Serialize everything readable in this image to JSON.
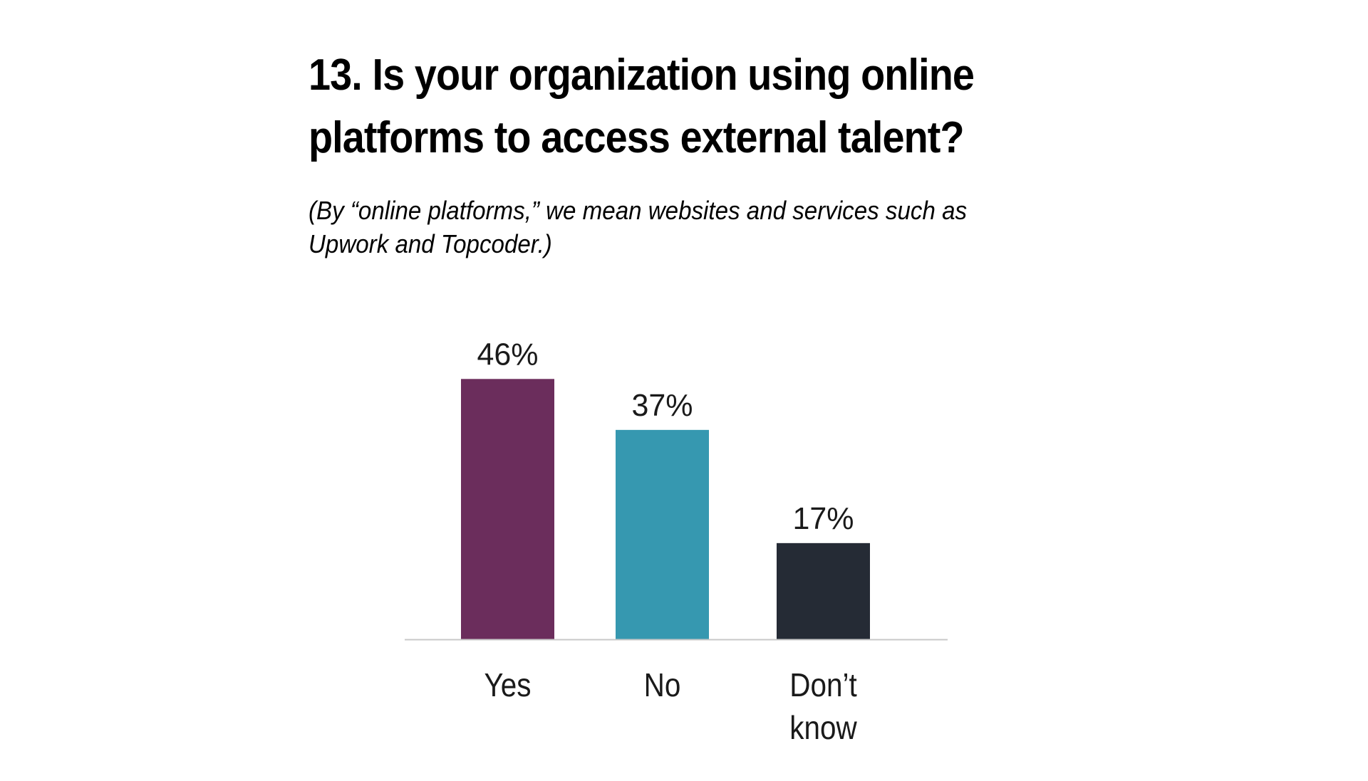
{
  "chart_data": {
    "type": "bar",
    "title_lines": [
      "13. Is your organization using online",
      "platforms to access external talent?"
    ],
    "subtitle_lines": [
      "(By “online platforms,” we mean websites and services such as",
      "Upwork and Topcoder.)"
    ],
    "categories": [
      "Yes",
      "No",
      "Don’t know"
    ],
    "category_label_lines": [
      [
        "Yes"
      ],
      [
        "No"
      ],
      [
        "Don’t",
        "know"
      ]
    ],
    "values": [
      46,
      37,
      17
    ],
    "value_labels": [
      "46%",
      "37%",
      "17%"
    ],
    "bar_colors": [
      "#6b2d5c",
      "#3698b0",
      "#252b35"
    ],
    "axis_color": "#c8c8c8",
    "ylim": [
      0,
      50
    ],
    "xlabel": "",
    "ylabel": "",
    "grid": false,
    "legend": false
  }
}
